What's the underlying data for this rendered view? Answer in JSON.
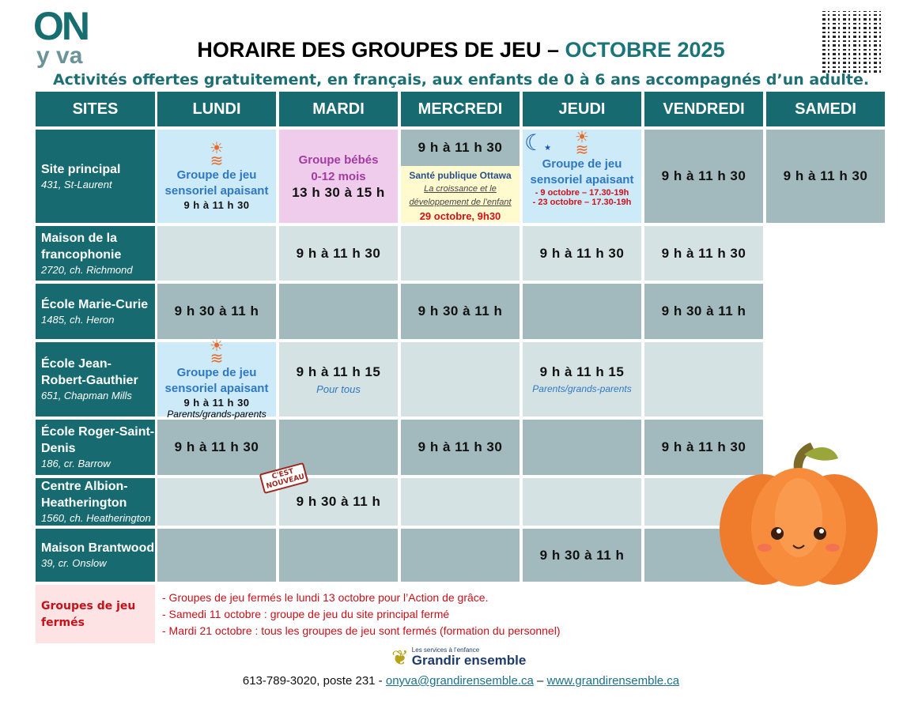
{
  "logo": {
    "top": "ON",
    "bottom": "y va"
  },
  "title": {
    "main": "HORAIRE DES GROUPES DE JEU –",
    "month": "OCTOBRE 2025"
  },
  "subtitle": "Activités offertes gratuitement, en français, aux enfants de 0 à 6 ans accompagnés d’un adulte.",
  "headers": [
    "SITES",
    "LUNDI",
    "MARDI",
    "MERCREDI",
    "JEUDI",
    "VENDREDI",
    "SAMEDI"
  ],
  "sites": [
    {
      "name": "Site principal",
      "address": "431, St-Laurent"
    },
    {
      "name": "Maison de la francophonie",
      "address": "2720, ch. Richmond"
    },
    {
      "name": "École Marie-Curie",
      "address": "1485, ch. Heron"
    },
    {
      "name": "École Jean-Robert-Gauthier",
      "address": "651, Chapman Mills"
    },
    {
      "name": "École Roger-Saint-Denis",
      "address": "186, cr. Barrow"
    },
    {
      "name": "Centre Albion-Heatherington",
      "address": "1560, ch. Heatherington"
    },
    {
      "name": "Maison Brantwood",
      "address": "39, cr. Onslow"
    }
  ],
  "principal": {
    "lundi": {
      "title": "Groupe de jeu sensoriel apaisant",
      "time": "9 h à 11 h 30"
    },
    "mardi": {
      "title": "Groupe bébés 0-12 mois",
      "time": "13 h 30 à 15 h"
    },
    "mercredi": {
      "time": "9 h à 11 h 30",
      "org": "Santé publique Ottawa",
      "topic": "La croissance et le développement de l’enfant",
      "date": "29 octobre, 9h30"
    },
    "jeudi": {
      "title": "Groupe de jeu sensoriel apaisant",
      "d1": "- 9 octobre – 17.30-19h",
      "d2": "- 23 octobre – 17.30-19h"
    },
    "vendredi": "9 h à 11 h 30",
    "samedi": "9 h à 11 h 30"
  },
  "maison": {
    "mardi": "9 h à 11 h 30",
    "jeudi": "9 h à 11 h 30",
    "vendredi": "9 h à 11 h 30"
  },
  "marie": {
    "lundi": "9 h 30 à 11 h",
    "mercredi": "9 h 30 à 11 h",
    "vendredi": "9 h 30 à 11 h"
  },
  "jrg": {
    "lundi": {
      "title": "Groupe de jeu sensoriel apaisant",
      "time": "9 h à 11 h 30",
      "note": "Parents/grands-parents"
    },
    "mardi": {
      "time": "9 h à 11 h 15",
      "note": "Pour tous"
    },
    "jeudi": {
      "time": "9 h à 11 h 15",
      "note": "Parents/grands-parents"
    }
  },
  "roger": {
    "lundi": "9 h à 11 h 30",
    "mercredi": "9 h à 11 h 30",
    "vendredi": "9 h à 11 h 30"
  },
  "albion": {
    "mardi": "9 h 30 à 11 h",
    "stamp": "C'EST NOUVEAU!"
  },
  "brantwood": {
    "jeudi": "9 h 30 à 11 h"
  },
  "closures": {
    "label": "Groupes de jeu fermés",
    "items": [
      "- Groupes de jeu fermés le lundi 13 octobre pour l’Action de grâce.",
      "- Samedi 11 octobre : groupe de jeu du site principal fermé",
      "- Mardi 21 octobre : tous les groupes de jeu sont fermés (formation du personnel)"
    ]
  },
  "footer": {
    "org_small": "Les services à l’enfance",
    "org": "Grandir ensemble",
    "phone": "613-789-3020, poste 231 -",
    "email": "onyva@grandirensemble.ca",
    "sep": "–",
    "web": "www.grandirensemble.ca"
  },
  "colors": {
    "header": "#176b70",
    "light": "#d5e2e4",
    "dark": "#a2b9bd",
    "sensory": "#cdeaf8",
    "baby": "#efcbec",
    "closed": "#fde3e4"
  }
}
